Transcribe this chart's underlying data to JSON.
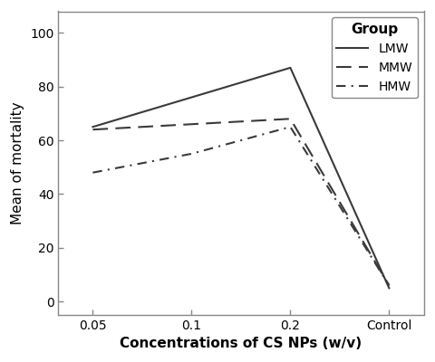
{
  "x_labels": [
    "0.05",
    "0.1",
    "0.2",
    "Control"
  ],
  "x_positions": [
    0,
    1,
    2,
    3
  ],
  "series": [
    {
      "name": "LMW",
      "values": [
        65,
        76,
        87,
        5
      ],
      "linestyle": "solid",
      "color": "#3a3a3a",
      "linewidth": 1.5
    },
    {
      "name": "MMW",
      "values": [
        64,
        66,
        68,
        6
      ],
      "linestyle": "dashed",
      "color": "#3a3a3a",
      "linewidth": 1.5,
      "dashes": [
        8,
        4
      ]
    },
    {
      "name": "HMW",
      "values": [
        48,
        55,
        65,
        6
      ],
      "linestyle": "dashed",
      "color": "#3a3a3a",
      "linewidth": 1.5,
      "dashes": [
        5,
        3,
        1,
        3
      ]
    }
  ],
  "ylabel": "Mean of mortality",
  "xlabel": "Concentrations of CS NPs (w/v)",
  "ylim": [
    -5,
    108
  ],
  "yticks": [
    0,
    20,
    40,
    60,
    80,
    100
  ],
  "legend_title": "Group",
  "legend_title_fontsize": 11,
  "legend_fontsize": 10,
  "axis_label_fontsize": 11,
  "tick_fontsize": 10,
  "background_color": "#ffffff",
  "figsize": [
    4.8,
    4.0
  ],
  "dpi": 100
}
